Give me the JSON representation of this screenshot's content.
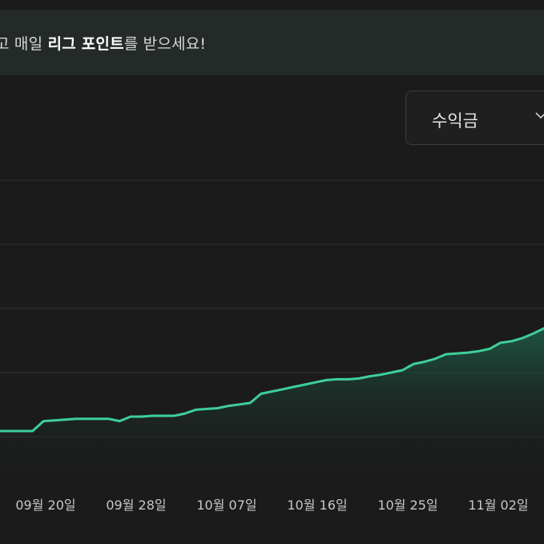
{
  "banner": {
    "prefix": "고 매일 ",
    "bold": "리그 포인트",
    "suffix": "를 받으세요!"
  },
  "selector": {
    "selected": "수익금",
    "icon": "chevron-down-icon"
  },
  "colors": {
    "line": "#3ecf99",
    "fill_top": "#1f5e48",
    "grid": "#303030",
    "banner_bg": "#232a28",
    "page_bg": "#1b1b1b"
  },
  "chart_data": {
    "type": "area",
    "xlabel": "",
    "ylabel": "",
    "grid": true,
    "legend": "none",
    "x_tick_labels": [
      "09월 20일",
      "09월 28일",
      "10월 07일",
      "10월 16일",
      "10월 25일",
      "11월 02일"
    ],
    "series": [
      {
        "points": [
          [
            0,
            0.0
          ],
          [
            3,
            0.0
          ],
          [
            4,
            0.13
          ],
          [
            5,
            0.14
          ],
          [
            6,
            0.15
          ],
          [
            7,
            0.16
          ],
          [
            8,
            0.16
          ],
          [
            9,
            0.16
          ],
          [
            10,
            0.16
          ],
          [
            11,
            0.13
          ],
          [
            12,
            0.19
          ],
          [
            13,
            0.19
          ],
          [
            14,
            0.2
          ],
          [
            15,
            0.2
          ],
          [
            16,
            0.2
          ],
          [
            17,
            0.23
          ],
          [
            18,
            0.28
          ],
          [
            19,
            0.29
          ],
          [
            20,
            0.3
          ],
          [
            21,
            0.33
          ],
          [
            22,
            0.35
          ],
          [
            23,
            0.37
          ],
          [
            24,
            0.49
          ],
          [
            25,
            0.52
          ],
          [
            26,
            0.55
          ],
          [
            27,
            0.58
          ],
          [
            28,
            0.61
          ],
          [
            29,
            0.64
          ],
          [
            30,
            0.67
          ],
          [
            31,
            0.68
          ],
          [
            32,
            0.68
          ],
          [
            33,
            0.69
          ],
          [
            34,
            0.72
          ],
          [
            35,
            0.74
          ],
          [
            36,
            0.77
          ],
          [
            37,
            0.8
          ],
          [
            38,
            0.88
          ],
          [
            39,
            0.91
          ],
          [
            40,
            0.95
          ],
          [
            41,
            1.01
          ],
          [
            42,
            1.02
          ],
          [
            43,
            1.03
          ],
          [
            44,
            1.05
          ],
          [
            45,
            1.08
          ],
          [
            46,
            1.16
          ],
          [
            47,
            1.18
          ],
          [
            48,
            1.22
          ],
          [
            49,
            1.28
          ],
          [
            50,
            1.35
          ]
        ]
      }
    ]
  }
}
